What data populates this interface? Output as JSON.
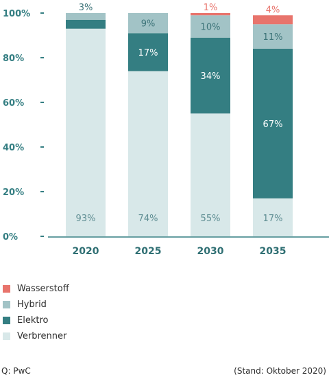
{
  "chart_data": {
    "type": "bar",
    "stacked": true,
    "categories": [
      "2020",
      "2025",
      "2030",
      "2035"
    ],
    "series": [
      {
        "name": "Verbrenner",
        "color": "#d8e8e9",
        "values": [
          93,
          74,
          55,
          17
        ],
        "labels": [
          "93%",
          "74%",
          "55%",
          "17%"
        ],
        "label_color": "#5e8d92"
      },
      {
        "name": "Elektro",
        "color": "#347e82",
        "values": [
          4,
          17,
          34,
          67
        ],
        "labels": [
          "4%",
          "17%",
          "34%",
          "67%"
        ],
        "label_color": "#ffffff"
      },
      {
        "name": "Hybrid",
        "color": "#a2c3c6",
        "values": [
          3,
          9,
          10,
          11
        ],
        "labels": [
          "3%",
          "9%",
          "10%",
          "11%"
        ],
        "label_color": "#3d7479"
      },
      {
        "name": "Wasserstoff",
        "color": "#e8746c",
        "values": [
          0,
          0,
          1,
          4
        ],
        "labels": [
          "",
          "",
          "1%",
          "4%"
        ],
        "label_color": "#e8746c"
      }
    ],
    "y_ticks": [
      "0%",
      "20%",
      "40%",
      "60%",
      "80%",
      "100%"
    ],
    "ylim": [
      0,
      100
    ],
    "legend_position": "bottom-left",
    "grid": false,
    "axis_color": "#347e82"
  },
  "footer": {
    "source": "Q: PwC",
    "stand": "(Stand: Oktober 2020)"
  }
}
